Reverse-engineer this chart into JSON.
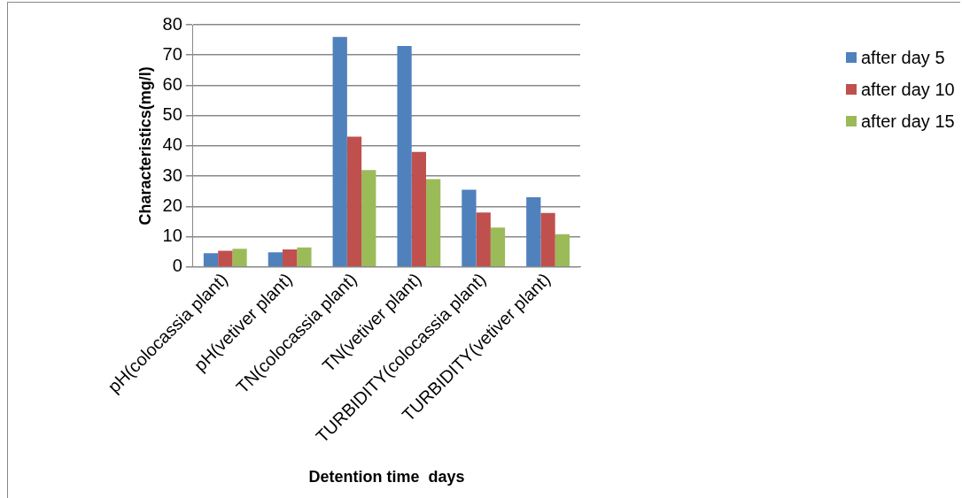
{
  "chart_data": {
    "type": "bar",
    "xlabel": "Detention time  days",
    "ylabel": "Characteristics(mg/l)",
    "categories": [
      "pH(colocassia plant)",
      "pH(vetiver plant)",
      "TN(colocassia plant)",
      "TN(vetiver plant)",
      "TURBIDITY(colocassia plant)",
      "TURBIDITY(vetiver plant)"
    ],
    "series": [
      {
        "name": "after day 5",
        "color": "#4f81bd",
        "values": [
          4.5,
          4.8,
          76,
          73,
          25.5,
          23
        ]
      },
      {
        "name": "after day 10",
        "color": "#c0504d",
        "values": [
          5.3,
          5.8,
          43,
          38,
          18,
          17.8
        ]
      },
      {
        "name": "after day 15",
        "color": "#9bbb59",
        "values": [
          6,
          6.4,
          32,
          29,
          13,
          10.8
        ]
      }
    ],
    "ylim": [
      0,
      80
    ],
    "yticks": [
      0,
      10,
      20,
      30,
      40,
      50,
      60,
      70,
      80
    ],
    "grid": "y",
    "legend": "right"
  }
}
